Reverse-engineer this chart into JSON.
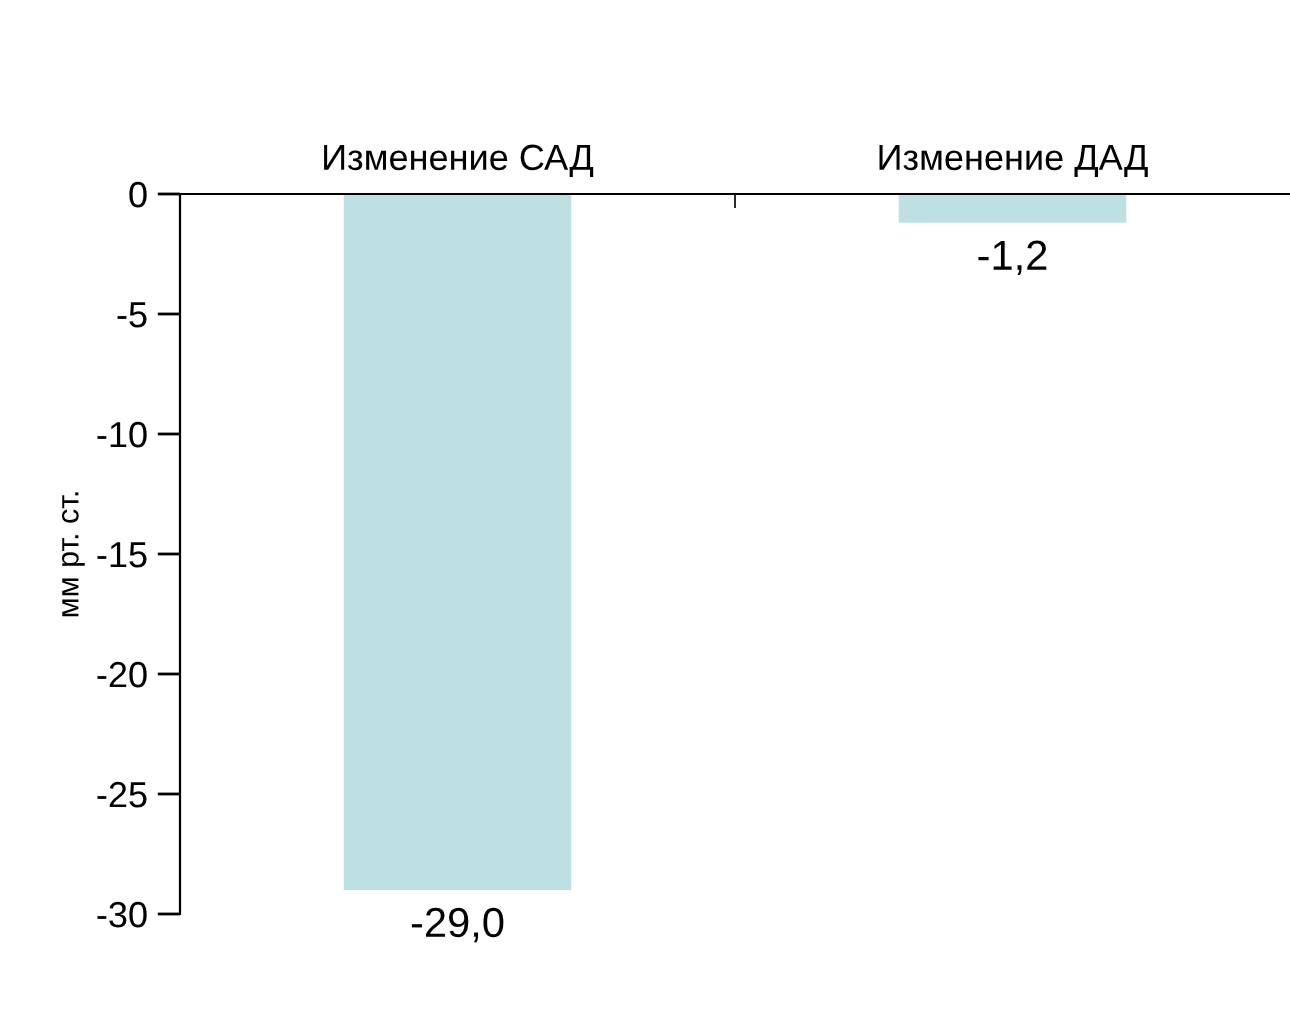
{
  "chart_data": {
    "type": "bar",
    "ylabel": "мм рт. ст.",
    "categories": [
      "Изменение САД",
      "Изменение ДАД"
    ],
    "values": [
      -29.0,
      -1.2
    ],
    "color": "#bde0e3",
    "value_labels": [
      "-29,0",
      "-1,2"
    ],
    "ylim": [
      -30,
      0
    ],
    "yticks": [
      0,
      -5,
      -10,
      -15,
      -20,
      -25,
      -30
    ],
    "grid": false,
    "legend": false
  }
}
